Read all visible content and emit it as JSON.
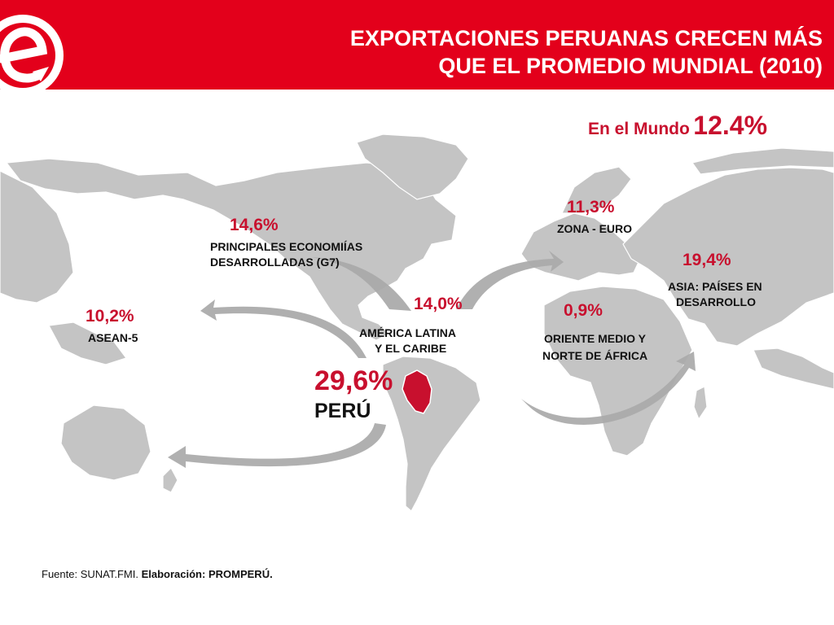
{
  "header": {
    "title_line1": "EXPORTACIONES PERUANAS CRECEN MÁS",
    "title_line2": "QUE EL PROMEDIO MUNDIAL (2010)",
    "brand_color": "#e3001b",
    "logo_icon": "e-arrow-logo-icon"
  },
  "world": {
    "label": "En el Mundo",
    "value": "12.4%"
  },
  "regions": {
    "g7": {
      "pct": "14,6%",
      "line1": "PRINCIPALES ECONOMIÍAS",
      "line2": "DESARROLLADAS (G7)"
    },
    "euro": {
      "pct": "11,3%",
      "name": "ZONA - EURO"
    },
    "asia": {
      "pct": "19,4%",
      "line1": "ASIA: PAÍSES EN",
      "line2": "DESARROLLO"
    },
    "asean": {
      "pct": "10,2%",
      "name": "ASEAN-5"
    },
    "latam": {
      "pct": "14,0%",
      "line1": "AMÉRICA LATINA",
      "line2": "Y EL CARIBE"
    },
    "mena": {
      "pct": "0,9%",
      "line1": "ORIENTE MEDIO Y",
      "line2": "NORTE DE ÁFRICA"
    },
    "peru": {
      "pct": "29,6%",
      "name": "PERÚ"
    }
  },
  "source": {
    "prefix": "Fuente: SUNAT.FMI.",
    "bold_label": "Elaboración:",
    "bold_value": "PROMPERÚ."
  },
  "colors": {
    "accent_red": "#c8102e",
    "land": "#c4c4c4",
    "arrow": "#a9a9a9",
    "peru": "#c8102e"
  }
}
